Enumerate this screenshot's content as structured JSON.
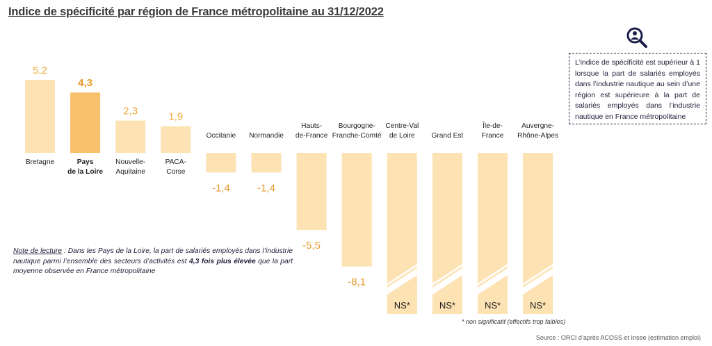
{
  "title": "Indice de spécificité par région de France métropolitaine au 31/12/2022",
  "definition": "L’indice de spécificité est supérieur à 1 lorsque la part de salariés employés dans l’industrie nautique au sein d’une région est supérieure à la part de salariés employés dans l’industrie nautique en France métropolitaine",
  "note": {
    "label": "Note de lecture",
    "text_before": " : Dans les Pays de la Loire, la part de salariés employés dans l’industrie nautique parmi l’ensemble des secteurs d’activités est ",
    "highlight": "4,3 fois plus élevée",
    "text_after": " que la part moyenne observée en France métropolitaine"
  },
  "ns_footnote": "* non significatif (effectifs trop faibles)",
  "source": "Source : ORCI d’après ACOSS et Insee (estimation emploi)",
  "icon": "magnifier-person-icon",
  "colors": {
    "bar": "#fde2b4",
    "highlight": "#f9c06b",
    "positive_label": "#f0a83c",
    "highlight_label": "#e8982a",
    "negative_label": "#e89a2e",
    "text": "#1f1f1f"
  },
  "chart_data": {
    "type": "bar",
    "categories": [
      "Bretagne",
      "Pays de la Loire",
      "Nouvelle-Aquitaine",
      "PACA-Corse",
      "Occitanie",
      "Normandie",
      "Hauts-de-France",
      "Bourgogne-Franche-Comté",
      "Centre-Val de Loire",
      "Grand Est",
      "Île-de-France",
      "Auvergne-Rhône-Alpes"
    ],
    "category_lines": [
      [
        "Bretagne"
      ],
      [
        "Pays",
        "de la Loire"
      ],
      [
        "Nouvelle-",
        "Aquitaine"
      ],
      [
        "PACA-",
        "Corse"
      ],
      [
        "Occitanie"
      ],
      [
        "Normandie"
      ],
      [
        "Hauts-",
        "de-France"
      ],
      [
        "Bourgogne-",
        "Franche-Comté"
      ],
      [
        "Centre-Val",
        "de Loire"
      ],
      [
        "Grand Est"
      ],
      [
        "Île-de-",
        "France"
      ],
      [
        "Auvergne-",
        "Rhône-Alpes"
      ]
    ],
    "values": [
      5.2,
      4.3,
      2.3,
      1.9,
      -1.4,
      -1.4,
      -5.5,
      -8.1,
      null,
      null,
      null,
      null
    ],
    "labels": [
      "5,2",
      "4,3",
      "2,3",
      "1,9",
      "-1,4",
      "-1,4",
      "-5,5",
      "-8,1",
      "NS*",
      "NS*",
      "NS*",
      "NS*"
    ],
    "highlight_index": 1,
    "ns_indices": [
      8,
      9,
      10,
      11
    ],
    "title": "Indice de spécificité par région de France métropolitaine au 31/12/2022",
    "xlabel": "",
    "ylabel": "",
    "grid": false
  }
}
